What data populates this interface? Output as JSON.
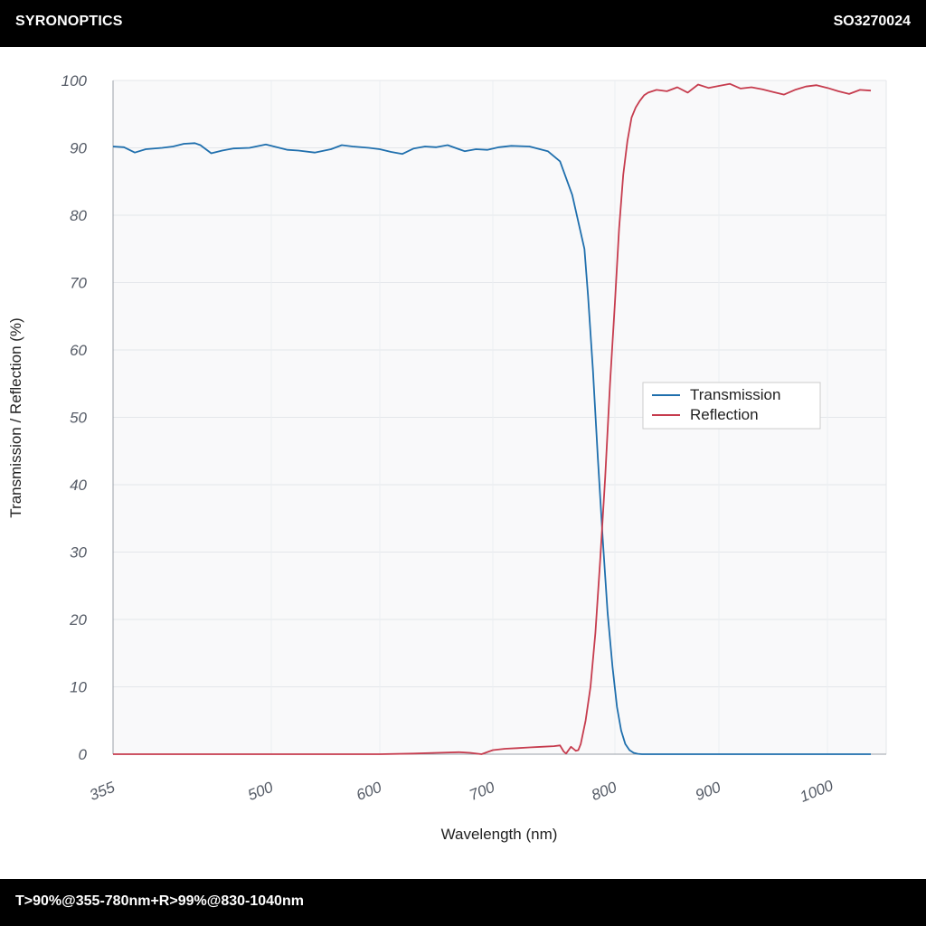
{
  "header": {
    "brand": "SYRONOPTICS",
    "part_number": "SO3270024"
  },
  "footer": {
    "spec": "T>90%@355-780nm+R>99%@830-1040nm"
  },
  "chart_data": {
    "type": "line",
    "xlabel": "Wavelength (nm)",
    "ylabel": "Transmission / Reflection (%)",
    "xlim": [
      355,
      1040
    ],
    "ylim": [
      0,
      100
    ],
    "x_ticks": [
      355,
      500,
      600,
      700,
      800,
      900,
      1000
    ],
    "y_ticks": [
      0,
      10,
      20,
      30,
      40,
      50,
      60,
      70,
      80,
      90,
      100
    ],
    "grid": true,
    "legend_position": "center-right",
    "series": [
      {
        "name": "Transmission",
        "color": "#1f6fad",
        "x": [
          355,
          365,
          375,
          385,
          400,
          410,
          420,
          430,
          435,
          445,
          455,
          465,
          480,
          495,
          505,
          515,
          525,
          540,
          555,
          565,
          575,
          590,
          600,
          610,
          620,
          630,
          640,
          650,
          660,
          675,
          685,
          695,
          705,
          715,
          730,
          745,
          755,
          765,
          775,
          778,
          782,
          786,
          790,
          794,
          798,
          802,
          806,
          810,
          814,
          818,
          822,
          826,
          830,
          834,
          840,
          860,
          880,
          900,
          920,
          940,
          960,
          980,
          1000,
          1020,
          1040
        ],
        "y": [
          90.2,
          90.1,
          89.3,
          89.8,
          90.0,
          90.2,
          90.6,
          90.7,
          90.4,
          89.2,
          89.6,
          89.9,
          90.0,
          90.5,
          90.1,
          89.7,
          89.6,
          89.3,
          89.8,
          90.4,
          90.2,
          90.0,
          89.8,
          89.4,
          89.1,
          89.9,
          90.2,
          90.1,
          90.4,
          89.5,
          89.8,
          89.7,
          90.1,
          90.3,
          90.2,
          89.5,
          88.0,
          83.0,
          75.0,
          68.0,
          57.0,
          44.0,
          32.0,
          21.0,
          13.0,
          7.0,
          3.5,
          1.5,
          0.6,
          0.2,
          0.05,
          0.0,
          0.0,
          0.0,
          0.0,
          0.0,
          0.0,
          0.0,
          0.0,
          0.0,
          0.0,
          0.0,
          0.0,
          0.0,
          0.0
        ]
      },
      {
        "name": "Reflection",
        "color": "#c63c4e",
        "x": [
          355,
          450,
          550,
          600,
          630,
          650,
          670,
          680,
          690,
          700,
          710,
          720,
          730,
          740,
          750,
          755,
          758,
          760,
          764,
          768,
          770,
          772,
          776,
          780,
          784,
          788,
          792,
          796,
          800,
          804,
          808,
          812,
          816,
          820,
          824,
          828,
          832,
          840,
          850,
          860,
          870,
          880,
          890,
          900,
          910,
          920,
          930,
          940,
          950,
          960,
          970,
          980,
          990,
          1000,
          1010,
          1020,
          1030,
          1040
        ],
        "y": [
          0,
          0,
          0,
          0,
          0.1,
          0.2,
          0.3,
          0.2,
          0.0,
          0.6,
          0.8,
          0.9,
          1.0,
          1.1,
          1.2,
          1.3,
          0.4,
          0.1,
          1.1,
          0.5,
          0.6,
          1.5,
          5.0,
          10.0,
          18.0,
          29.0,
          41.0,
          55.0,
          67.0,
          78.0,
          86.0,
          91.0,
          94.5,
          96.0,
          97.0,
          97.8,
          98.2,
          98.6,
          98.4,
          99.0,
          98.2,
          99.4,
          98.9,
          99.2,
          99.5,
          98.8,
          99.0,
          98.7,
          98.3,
          97.9,
          98.6,
          99.1,
          99.3,
          98.9,
          98.4,
          98.0,
          98.6,
          98.5
        ]
      }
    ]
  }
}
